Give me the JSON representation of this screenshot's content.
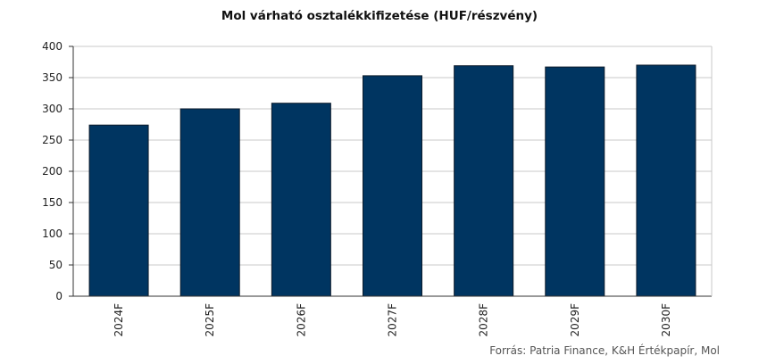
{
  "chart_data": {
    "type": "bar",
    "title": "Mol várható osztalékkifizetése (HUF/részvény)",
    "categories": [
      "2024F",
      "2025F",
      "2026F",
      "2027F",
      "2028F",
      "2029F",
      "2030F"
    ],
    "values": [
      274,
      300,
      309,
      353,
      369,
      367,
      370
    ],
    "ylim": [
      0,
      400
    ],
    "yticks": [
      0,
      50,
      100,
      150,
      200,
      250,
      300,
      350,
      400
    ],
    "xlabel": "",
    "ylabel": "",
    "grid": true,
    "legend": "none",
    "bar_color": "#003561",
    "source": "Forrás: Patria Finance, K&H Értékpapír, Mol"
  }
}
